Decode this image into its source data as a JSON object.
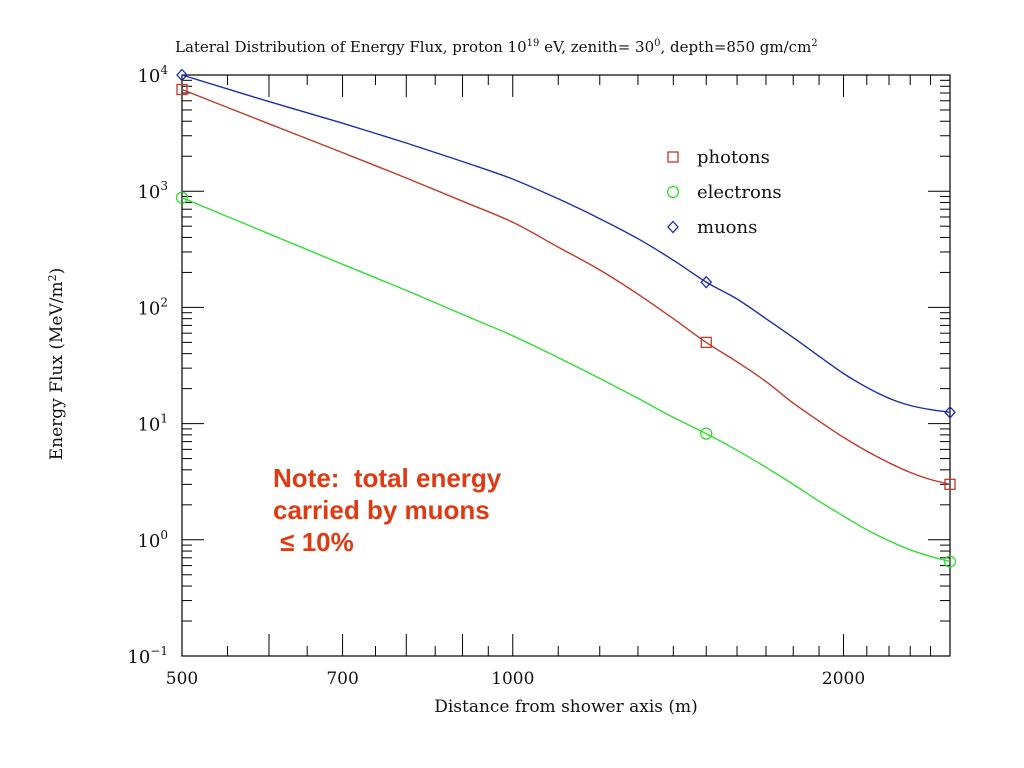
{
  "chart_data": {
    "type": "line",
    "title": "Lateral Distribution of Energy Flux, proton 10",
    "title_parts": {
      "t1": "Lateral Distribution of Energy Flux, proton 10",
      "s1": "19",
      "t2": " eV, zenith= 30",
      "s2": "0",
      "t3": ", depth=850 gm/cm",
      "s3": "2"
    },
    "xlabel": "Distance from shower axis (m)",
    "ylabel_parts": {
      "t1": "Energy Flux (MeV/m",
      "s1": "2",
      "t2": ")"
    },
    "x_scale": "log",
    "y_scale": "log",
    "xlim": [
      500,
      2500
    ],
    "ylim": [
      0.1,
      10000
    ],
    "x_tick_labels": [
      {
        "value": 500,
        "label": "500"
      },
      {
        "value": 700,
        "label": "700"
      },
      {
        "value": 1000,
        "label": "1000"
      },
      {
        "value": 2000,
        "label": "2000"
      }
    ],
    "y_tick_labels": [
      {
        "value": 10000,
        "base": "10",
        "exp": "4"
      },
      {
        "value": 1000,
        "base": "10",
        "exp": "3"
      },
      {
        "value": 100,
        "base": "10",
        "exp": "2"
      },
      {
        "value": 10,
        "base": "10",
        "exp": "1"
      },
      {
        "value": 1,
        "base": "10",
        "exp": "0"
      },
      {
        "value": 0.1,
        "base": "10",
        "exp": "−1"
      }
    ],
    "legend_position": "top-right",
    "series": [
      {
        "name": "photons",
        "color": "#c0392b",
        "marker": "square",
        "points": [
          [
            500,
            7500
          ],
          [
            1500,
            50
          ],
          [
            2500,
            3.0
          ]
        ],
        "curve": [
          [
            500,
            7500
          ],
          [
            600,
            3800
          ],
          [
            700,
            2150
          ],
          [
            800,
            1300
          ],
          [
            900,
            820
          ],
          [
            1000,
            540
          ],
          [
            1100,
            330
          ],
          [
            1200,
            210
          ],
          [
            1300,
            130
          ],
          [
            1400,
            80
          ],
          [
            1500,
            50
          ],
          [
            1600,
            34
          ],
          [
            1700,
            23
          ],
          [
            1800,
            15
          ],
          [
            1900,
            10.5
          ],
          [
            2000,
            7.6
          ],
          [
            2100,
            5.8
          ],
          [
            2200,
            4.6
          ],
          [
            2300,
            3.8
          ],
          [
            2400,
            3.3
          ],
          [
            2500,
            3.0
          ]
        ]
      },
      {
        "name": "electrons",
        "color": "#33dd33",
        "marker": "circle",
        "points": [
          [
            500,
            880
          ],
          [
            1500,
            8.2
          ],
          [
            2500,
            0.65
          ]
        ],
        "curve": [
          [
            500,
            880
          ],
          [
            600,
            430
          ],
          [
            700,
            235
          ],
          [
            800,
            140
          ],
          [
            900,
            87
          ],
          [
            1000,
            57
          ],
          [
            1100,
            37
          ],
          [
            1200,
            24.5
          ],
          [
            1300,
            16.5
          ],
          [
            1400,
            11.3
          ],
          [
            1500,
            8.2
          ],
          [
            1600,
            5.9
          ],
          [
            1700,
            4.2
          ],
          [
            1800,
            3.0
          ],
          [
            1900,
            2.15
          ],
          [
            2000,
            1.6
          ],
          [
            2100,
            1.22
          ],
          [
            2200,
            0.98
          ],
          [
            2300,
            0.82
          ],
          [
            2400,
            0.72
          ],
          [
            2500,
            0.65
          ]
        ]
      },
      {
        "name": "muons",
        "color": "#1f2ea8",
        "marker": "diamond",
        "points": [
          [
            500,
            10000
          ],
          [
            1500,
            165
          ],
          [
            2500,
            12.5
          ]
        ],
        "curve": [
          [
            500,
            10000
          ],
          [
            600,
            5900
          ],
          [
            700,
            3850
          ],
          [
            800,
            2600
          ],
          [
            900,
            1800
          ],
          [
            1000,
            1270
          ],
          [
            1100,
            860
          ],
          [
            1200,
            580
          ],
          [
            1300,
            390
          ],
          [
            1400,
            255
          ],
          [
            1500,
            165
          ],
          [
            1600,
            118
          ],
          [
            1700,
            80
          ],
          [
            1800,
            55
          ],
          [
            1900,
            38
          ],
          [
            2000,
            27
          ],
          [
            2100,
            20.5
          ],
          [
            2200,
            16.5
          ],
          [
            2300,
            14.3
          ],
          [
            2400,
            13.2
          ],
          [
            2500,
            12.5
          ]
        ]
      }
    ],
    "annotation": "Note:  total energy\ncarried by muons\n ≤ 10%"
  }
}
